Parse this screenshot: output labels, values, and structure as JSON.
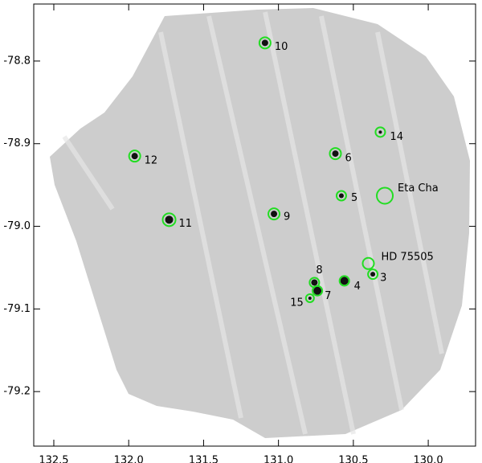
{
  "chart_data": {
    "type": "scatter",
    "x": [
      131.09,
      130.32,
      130.62,
      131.96,
      130.58,
      130.29,
      131.03,
      131.73,
      130.4,
      130.37,
      130.76,
      130.56,
      130.74,
      130.79
    ],
    "values": [
      -78.778,
      -78.886,
      -78.912,
      -78.915,
      -78.963,
      -78.963,
      -78.985,
      -78.992,
      -79.045,
      -79.058,
      -79.068,
      -79.066,
      -79.078,
      -79.087
    ],
    "labels": [
      "10",
      "14",
      "6",
      "12",
      "5",
      "Eta Cha",
      "9",
      "11",
      "HD 75505",
      "3",
      "8",
      "4",
      "7",
      "15"
    ],
    "color": "#22dd22",
    "xlim": [
      132.634,
      129.684
    ],
    "ylim": [
      -79.266,
      -78.731
    ],
    "xticks": [
      132.5,
      {
        "value": 132.0,
        "label": "132.0"
      },
      131.5,
      {
        "value": 131.0,
        "label": "131.0"
      },
      130.5,
      {
        "value": 130.0,
        "label": "130.0"
      }
    ],
    "yticks": [
      -78.8,
      -78.9,
      {
        "value": -79.0,
        "label": "-79.0"
      },
      -79.1,
      -79.2
    ]
  }
}
